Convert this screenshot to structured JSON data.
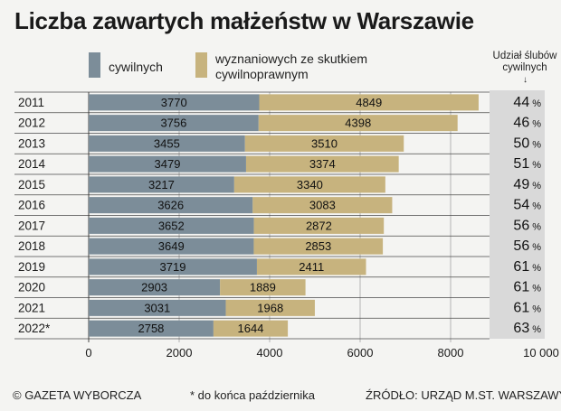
{
  "title": "Liczba zawartych małżeństw w Warszawie",
  "legend": {
    "civil": "cywilnych",
    "religious_line1": "wyznaniowych ze skutkiem",
    "religious_line2": "cywilnoprawnym"
  },
  "share_header_line1": "Udział ślubów",
  "share_header_line2": "cywilnych",
  "share_arrow": "↓",
  "colors": {
    "civil": "#7c8d99",
    "religious": "#c7b37e",
    "share_bg": "#d9d9d9"
  },
  "footer": {
    "credit": "© GAZETA WYBORCZA",
    "note": "* do końca października",
    "source": "ŹRÓDŁO:  URZĄD M.ST. WARSZAWY"
  },
  "chart_data": {
    "type": "bar",
    "orientation": "horizontal",
    "stacked": true,
    "title": "Liczba zawartych małżeństw w Warszawie",
    "categories": [
      "2011",
      "2012",
      "2013",
      "2014",
      "2015",
      "2016",
      "2017",
      "2018",
      "2019",
      "2020",
      "2021",
      "2022*"
    ],
    "series": [
      {
        "name": "cywilnych",
        "values": [
          3770,
          3756,
          3455,
          3479,
          3217,
          3626,
          3652,
          3649,
          3719,
          2903,
          3031,
          2758
        ]
      },
      {
        "name": "wyznaniowych ze skutkiem cywilnoprawnym",
        "values": [
          4849,
          4398,
          3510,
          3374,
          3340,
          3083,
          2872,
          2853,
          2411,
          1889,
          1968,
          1644
        ]
      }
    ],
    "share_of_civil": [
      "44",
      "46",
      "50",
      "51",
      "49",
      "54",
      "56",
      "56",
      "61",
      "61",
      "61",
      "63"
    ],
    "share_unit": "%",
    "xlim": [
      0,
      10000
    ],
    "xticks": [
      0,
      2000,
      4000,
      6000,
      8000,
      10000
    ],
    "xtick_labels": [
      "0",
      "2000",
      "4000",
      "6000",
      "8000",
      "10 000"
    ],
    "grid": true,
    "legend_position": "top"
  }
}
